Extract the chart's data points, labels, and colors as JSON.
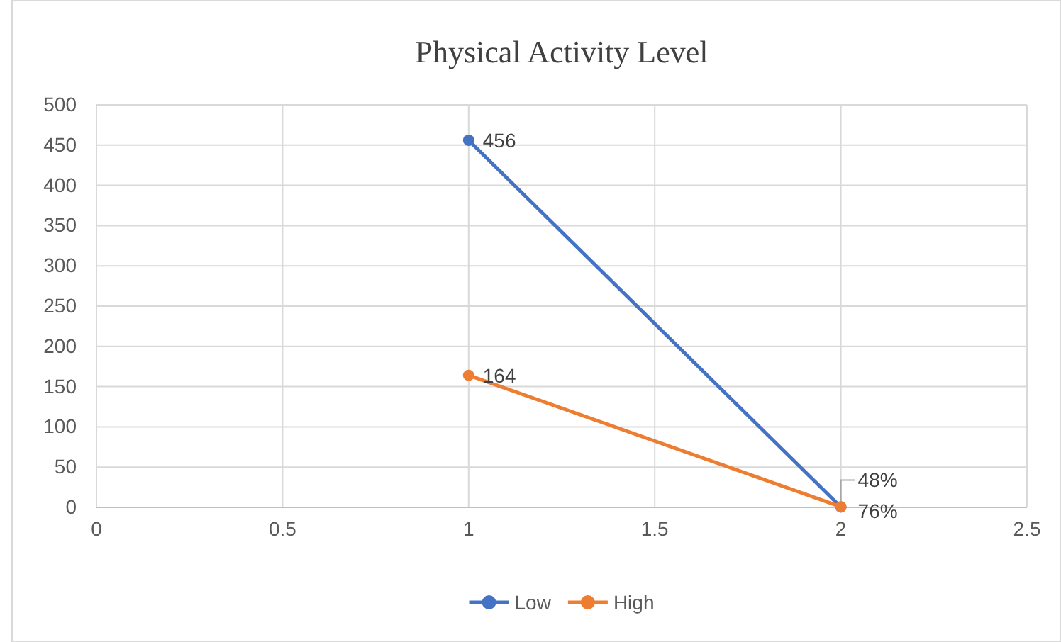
{
  "chart_data": {
    "type": "line",
    "title": "Physical Activity Level",
    "x": [
      1,
      2
    ],
    "series": [
      {
        "name": "Low",
        "color": "#4472c4",
        "values": [
          456,
          0.48
        ],
        "value_labels": [
          "456",
          "48%"
        ]
      },
      {
        "name": "High",
        "color": "#ed7d31",
        "values": [
          164,
          0.76
        ],
        "value_labels": [
          "164",
          "76%"
        ]
      }
    ],
    "xlim": [
      0,
      2.5
    ],
    "xticks": [
      0,
      0.5,
      1,
      1.5,
      2,
      2.5
    ],
    "ylim": [
      0,
      500
    ],
    "yticks": [
      0,
      50,
      100,
      150,
      200,
      250,
      300,
      350,
      400,
      450,
      500
    ],
    "grid": true,
    "legend": "bottom",
    "marker": "circle",
    "line_style": "solid"
  }
}
